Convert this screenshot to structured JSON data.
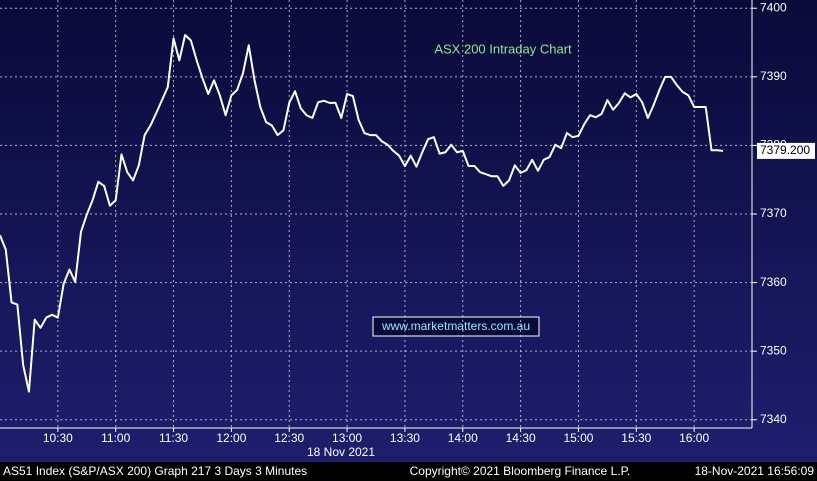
{
  "chart_data": {
    "type": "line",
    "title": "ASX 200 Intraday Chart",
    "watermark": "www.marketmatters.com.au",
    "date_label": "18 Nov 2021",
    "footer_left": "AS51 Index (S&P/ASX 200) Graph 217 3 Days 3 Minutes",
    "footer_center": "Copyright© 2021 Bloomberg Finance L.P.",
    "footer_right": "18-Nov-2021 16:56:09",
    "color": "#ffffff",
    "grid": true,
    "xlim": [
      600,
      990
    ],
    "ylim": [
      7338.8,
      7401.2
    ],
    "xticks": [
      {
        "value": 630,
        "label": "10:30"
      },
      {
        "value": 660,
        "label": "11:00"
      },
      {
        "value": 690,
        "label": "11:30"
      },
      {
        "value": 720,
        "label": "12:00"
      },
      {
        "value": 750,
        "label": "12:30"
      },
      {
        "value": 780,
        "label": "13:00"
      },
      {
        "value": 810,
        "label": "13:30"
      },
      {
        "value": 840,
        "label": "14:00"
      },
      {
        "value": 870,
        "label": "14:30"
      },
      {
        "value": 900,
        "label": "15:00"
      },
      {
        "value": 930,
        "label": "15:30"
      },
      {
        "value": 960,
        "label": "16:00"
      }
    ],
    "yticks": [
      7340,
      7350,
      7360,
      7370,
      7380,
      7390,
      7400
    ],
    "price_tag": {
      "value": 7379.2,
      "label": "7379.200"
    },
    "x": [
      600,
      603,
      606,
      609,
      612,
      615,
      618,
      621,
      624,
      627,
      630,
      633,
      636,
      639,
      642,
      645,
      648,
      651,
      654,
      657,
      660,
      663,
      666,
      669,
      672,
      675,
      678,
      681,
      684,
      687,
      690,
      693,
      696,
      699,
      702,
      705,
      708,
      711,
      714,
      717,
      720,
      723,
      726,
      729,
      732,
      735,
      738,
      741,
      744,
      747,
      750,
      753,
      756,
      759,
      762,
      765,
      768,
      771,
      774,
      777,
      780,
      783,
      786,
      789,
      792,
      795,
      798,
      801,
      804,
      807,
      810,
      813,
      816,
      819,
      822,
      825,
      828,
      831,
      834,
      837,
      840,
      843,
      846,
      849,
      852,
      855,
      858,
      861,
      864,
      867,
      870,
      873,
      876,
      879,
      882,
      885,
      888,
      891,
      894,
      897,
      900,
      903,
      906,
      909,
      912,
      915,
      918,
      921,
      924,
      927,
      930,
      933,
      936,
      939,
      942,
      945,
      948,
      951,
      954,
      957,
      960,
      963,
      966,
      969,
      972,
      975
    ],
    "values": [
      7366.9,
      7364.8,
      7357.1,
      7356.8,
      7348.0,
      7344.1,
      7354.6,
      7353.4,
      7354.9,
      7355.3,
      7354.9,
      7359.8,
      7361.9,
      7360.1,
      7367.4,
      7369.9,
      7372.0,
      7374.7,
      7374.1,
      7371.2,
      7372.0,
      7378.7,
      7376.1,
      7374.9,
      7377.1,
      7381.5,
      7382.9,
      7384.7,
      7386.6,
      7388.5,
      7395.6,
      7392.4,
      7396.1,
      7395.3,
      7392.4,
      7389.8,
      7387.5,
      7389.5,
      7387.3,
      7384.4,
      7387.3,
      7388.1,
      7390.5,
      7394.6,
      7389.5,
      7385.6,
      7383.4,
      7382.9,
      7381.5,
      7382.2,
      7386.2,
      7387.9,
      7385.4,
      7384.4,
      7384.0,
      7386.3,
      7386.5,
      7386.2,
      7386.2,
      7384.0,
      7387.5,
      7387.2,
      7383.7,
      7381.8,
      7381.5,
      7381.5,
      7380.6,
      7380.1,
      7379.2,
      7378.5,
      7377.0,
      7378.5,
      7376.9,
      7379.0,
      7380.9,
      7381.2,
      7378.8,
      7379.0,
      7380.1,
      7379.0,
      7379.2,
      7377.0,
      7377.0,
      7376.1,
      7375.8,
      7375.5,
      7375.5,
      7374.1,
      7374.9,
      7377.1,
      7376.0,
      7376.4,
      7377.9,
      7376.3,
      7377.9,
      7378.3,
      7380.1,
      7379.6,
      7381.8,
      7381.2,
      7381.4,
      7383.1,
      7384.4,
      7384.1,
      7384.6,
      7386.6,
      7385.2,
      7386.2,
      7387.6,
      7387.0,
      7387.5,
      7386.3,
      7384.0,
      7385.9,
      7388.1,
      7390.0,
      7390.0,
      7388.8,
      7387.8,
      7387.3,
      7385.6,
      7385.6,
      7385.6,
      7379.3,
      7379.3,
      7379.2
    ]
  }
}
